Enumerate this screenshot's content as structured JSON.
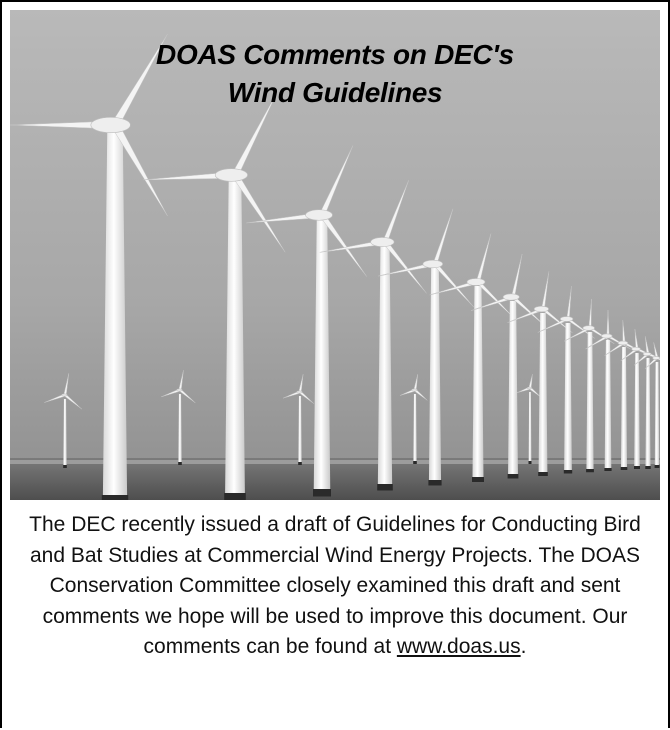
{
  "headline": {
    "line1": "DOAS Comments on DEC's",
    "line2": "Wind Guidelines"
  },
  "body": {
    "text": "The DEC recently issued a draft of Guidelines for Conducting Bird and Bat Studies at Commercial Wind Energy Projects. The DOAS Conservation Committee closely examined this draft and sent comments we hope will be used to improve this document. Our comments can be found at",
    "link_text": "www.doas.us",
    "trailing": "."
  }
}
